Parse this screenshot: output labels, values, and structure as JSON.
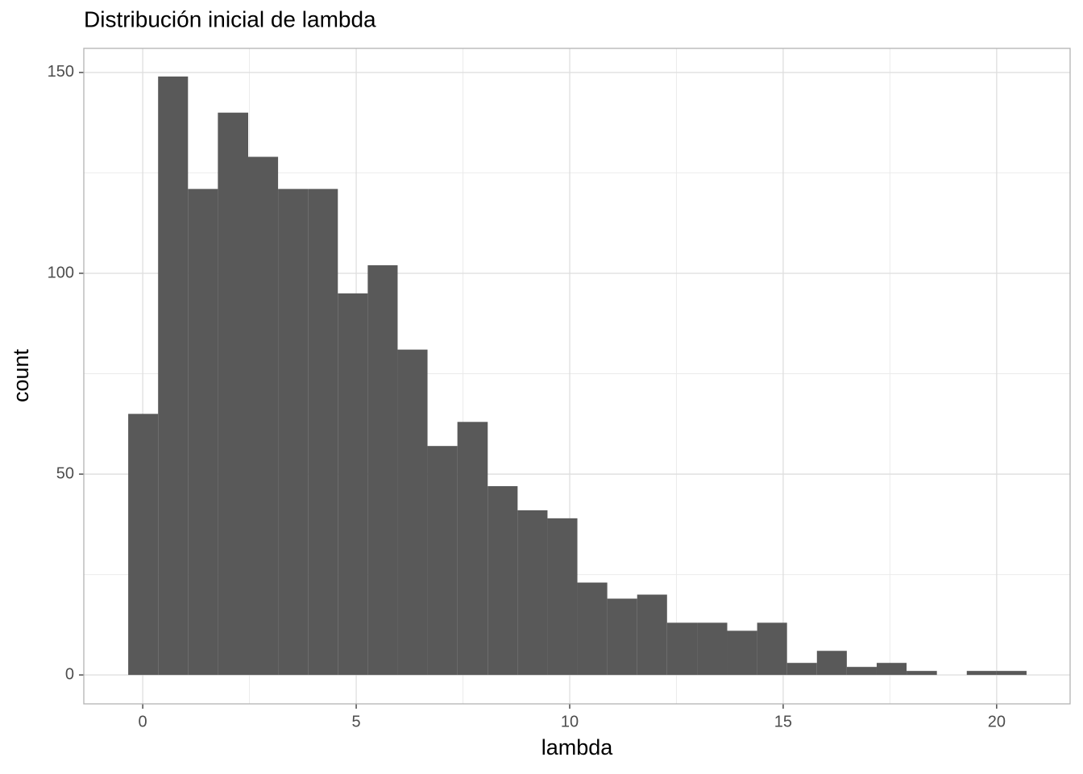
{
  "chart_data": {
    "type": "histogram",
    "title": "Distribución inicial de lambda",
    "x_label": "lambda",
    "y_label": "count",
    "bins": [
      -0.34,
      0.36,
      1.06,
      1.76,
      2.47,
      3.17,
      3.87,
      4.57,
      5.27,
      5.97,
      6.67,
      7.37,
      8.08,
      8.78,
      9.48,
      10.18,
      10.88,
      11.58,
      12.28,
      12.99,
      13.69,
      14.39,
      15.09,
      15.79,
      16.49,
      17.19,
      17.89,
      18.6,
      19.3,
      20.0,
      20.7
    ],
    "counts": [
      65,
      149,
      121,
      140,
      129,
      121,
      121,
      95,
      102,
      81,
      57,
      63,
      47,
      41,
      39,
      23,
      19,
      20,
      13,
      13,
      11,
      13,
      3,
      6,
      2,
      3,
      1,
      0,
      1,
      1
    ],
    "color": "#595959",
    "xlim": [
      -1.38,
      21.72
    ],
    "ylim": [
      -7.2,
      156
    ],
    "xticks": [
      0,
      5,
      10,
      15,
      20
    ],
    "yticks": [
      0,
      50,
      100,
      150
    ],
    "xminor": [
      2.5,
      7.5,
      12.5,
      17.5
    ],
    "yminor": [
      25,
      75,
      125
    ],
    "grid": true
  }
}
